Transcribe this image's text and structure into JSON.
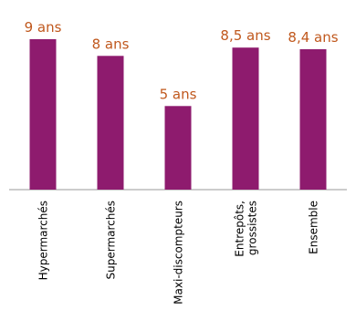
{
  "chart_data": {
    "type": "bar",
    "categories": [
      "Hypermarchés",
      "Supermarchés",
      "Maxi-discompteurs",
      "Entrepôts, grossistes",
      "Ensemble"
    ],
    "category_lines": [
      [
        "Hypermarchés"
      ],
      [
        "Supermarchés"
      ],
      [
        "Maxi-discompteurs"
      ],
      [
        "Entrepôts,",
        "grossistes"
      ],
      [
        "Ensemble"
      ]
    ],
    "values": [
      9,
      8,
      5,
      8.5,
      8.4
    ],
    "data_labels": [
      "9 ans",
      "8 ans",
      "5 ans",
      "8,5 ans",
      "8,4 ans"
    ],
    "ylim": [
      0,
      9.6
    ],
    "grid": false,
    "colors": {
      "bar": "#8e1b6e",
      "label": "#c0581d",
      "axis": "#999999",
      "tick_text": "#000000"
    }
  }
}
